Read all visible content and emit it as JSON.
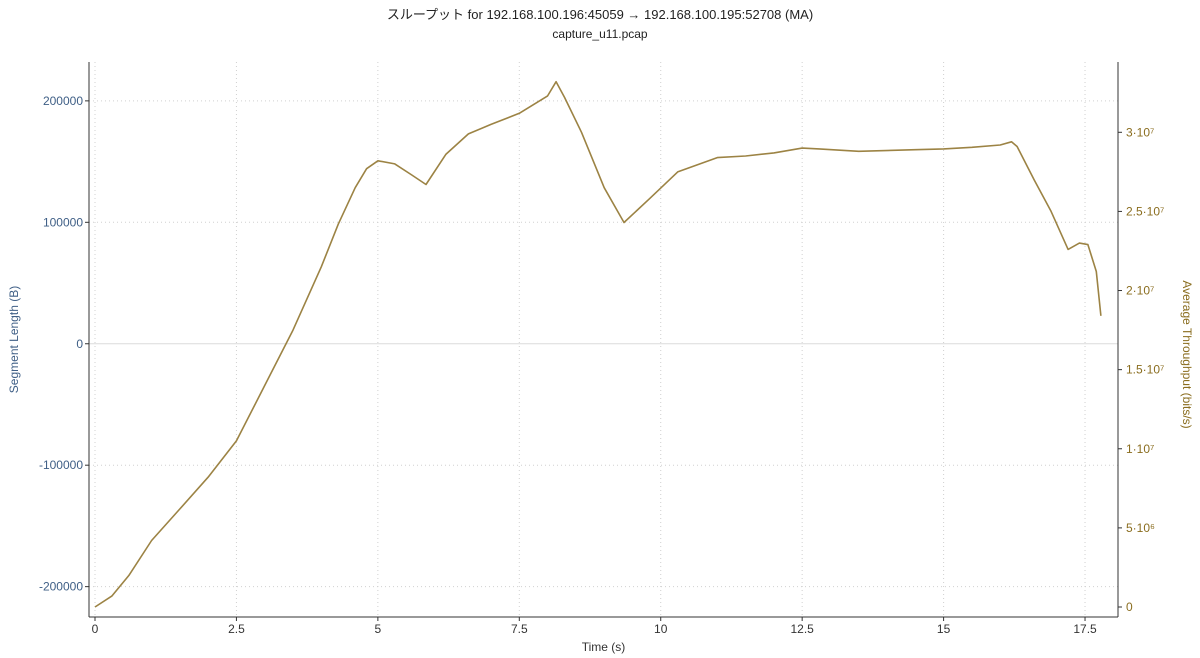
{
  "title": "スループット for 192.168.100.196:45059 → 192.168.100.195:52708 (MA)",
  "subtitle": "capture_u11.pcap",
  "chart_data": {
    "type": "line",
    "title": "スループット for 192.168.100.196:45059 → 192.168.100.195:52708 (MA)",
    "subtitle": "capture_u11.pcap",
    "xlabel": "Time (s)",
    "ylabel_left": "Segment Length (B)",
    "ylabel_right": "Average Throughput (bits/s)",
    "xlim": [
      0,
      17.8
    ],
    "ylim_left": [
      -225000,
      232000
    ],
    "ylim_right": [
      0,
      34000000
    ],
    "x_ticks": [
      {
        "value": 0,
        "label": "0"
      },
      {
        "value": 2.5,
        "label": "2.5"
      },
      {
        "value": 5,
        "label": "5"
      },
      {
        "value": 7.5,
        "label": "7.5"
      },
      {
        "value": 10,
        "label": "10"
      },
      {
        "value": 12.5,
        "label": "12.5"
      },
      {
        "value": 15,
        "label": "15"
      },
      {
        "value": 17.5,
        "label": "17.5"
      }
    ],
    "left_ticks": [
      {
        "value": 200000,
        "label": "200000"
      },
      {
        "value": 100000,
        "label": "100000"
      },
      {
        "value": 0,
        "label": "0"
      },
      {
        "value": -100000,
        "label": "-100000"
      },
      {
        "value": -200000,
        "label": "-200000"
      }
    ],
    "right_ticks": [
      {
        "value": 0,
        "label": "0"
      },
      {
        "value": 5000000,
        "label": "5·10⁶"
      },
      {
        "value": 10000000,
        "label": "1·10⁷"
      },
      {
        "value": 15000000,
        "label": "1.5·10⁷"
      },
      {
        "value": 20000000,
        "label": "2·10⁷"
      },
      {
        "value": 25000000,
        "label": "2.5·10⁷"
      },
      {
        "value": 30000000,
        "label": "3·10⁷"
      }
    ],
    "grid": true,
    "colors": {
      "left_axis": "#3f5f86",
      "right_axis": "#8a6d1f",
      "series": "#9c8344",
      "grid": "#d0d0d0"
    },
    "series": [
      {
        "axis": "right",
        "x": [
          0,
          0.3,
          0.6,
          1.0,
          1.5,
          2.0,
          2.5,
          3.0,
          3.5,
          4.0,
          4.3,
          4.6,
          4.8,
          5.0,
          5.3,
          5.6,
          5.85,
          6.2,
          6.6,
          7.0,
          7.5,
          8.0,
          8.15,
          8.3,
          8.6,
          9.0,
          9.35,
          9.8,
          10.3,
          11.0,
          11.5,
          12.0,
          12.5,
          12.8,
          13.5,
          14.5,
          15.0,
          15.5,
          16.0,
          16.2,
          16.3,
          16.6,
          16.9,
          17.2,
          17.4,
          17.55,
          17.7,
          17.78
        ],
        "y": [
          0,
          700000,
          2000000,
          4200000,
          6200000,
          8200000,
          10500000,
          14000000,
          17500000,
          21500000,
          24200000,
          26500000,
          27700000,
          28200000,
          28000000,
          27300000,
          26700000,
          28600000,
          29900000,
          30500000,
          31200000,
          32300000,
          33200000,
          32200000,
          30000000,
          26500000,
          24300000,
          25800000,
          27500000,
          28400000,
          28500000,
          28700000,
          29000000,
          28950000,
          28800000,
          28900000,
          28950000,
          29050000,
          29200000,
          29400000,
          29100000,
          27000000,
          25000000,
          22600000,
          23000000,
          22900000,
          21200000,
          18400000
        ]
      }
    ]
  }
}
